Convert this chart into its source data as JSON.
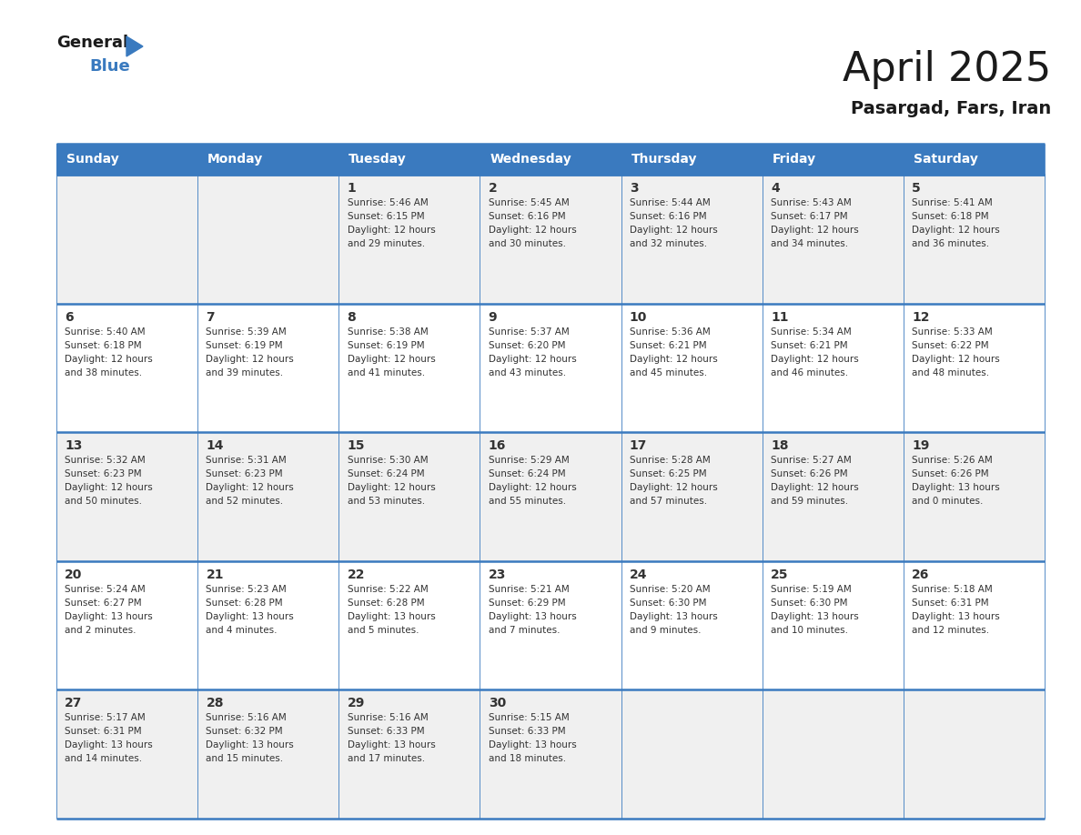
{
  "title": "April 2025",
  "subtitle": "Pasargad, Fars, Iran",
  "header_color": "#3a7abf",
  "header_text_color": "#ffffff",
  "cell_bg_color": "#f0f0f0",
  "cell_bg_color_alt": "#ffffff",
  "text_color": "#333333",
  "border_color": "#3a7abf",
  "days_of_week": [
    "Sunday",
    "Monday",
    "Tuesday",
    "Wednesday",
    "Thursday",
    "Friday",
    "Saturday"
  ],
  "weeks": [
    [
      {
        "day": null,
        "info": null
      },
      {
        "day": null,
        "info": null
      },
      {
        "day": 1,
        "info": {
          "sunrise": "5:46 AM",
          "sunset": "6:15 PM",
          "daylight_line1": "Daylight: 12 hours",
          "daylight_line2": "and 29 minutes."
        }
      },
      {
        "day": 2,
        "info": {
          "sunrise": "5:45 AM",
          "sunset": "6:16 PM",
          "daylight_line1": "Daylight: 12 hours",
          "daylight_line2": "and 30 minutes."
        }
      },
      {
        "day": 3,
        "info": {
          "sunrise": "5:44 AM",
          "sunset": "6:16 PM",
          "daylight_line1": "Daylight: 12 hours",
          "daylight_line2": "and 32 minutes."
        }
      },
      {
        "day": 4,
        "info": {
          "sunrise": "5:43 AM",
          "sunset": "6:17 PM",
          "daylight_line1": "Daylight: 12 hours",
          "daylight_line2": "and 34 minutes."
        }
      },
      {
        "day": 5,
        "info": {
          "sunrise": "5:41 AM",
          "sunset": "6:18 PM",
          "daylight_line1": "Daylight: 12 hours",
          "daylight_line2": "and 36 minutes."
        }
      }
    ],
    [
      {
        "day": 6,
        "info": {
          "sunrise": "5:40 AM",
          "sunset": "6:18 PM",
          "daylight_line1": "Daylight: 12 hours",
          "daylight_line2": "and 38 minutes."
        }
      },
      {
        "day": 7,
        "info": {
          "sunrise": "5:39 AM",
          "sunset": "6:19 PM",
          "daylight_line1": "Daylight: 12 hours",
          "daylight_line2": "and 39 minutes."
        }
      },
      {
        "day": 8,
        "info": {
          "sunrise": "5:38 AM",
          "sunset": "6:19 PM",
          "daylight_line1": "Daylight: 12 hours",
          "daylight_line2": "and 41 minutes."
        }
      },
      {
        "day": 9,
        "info": {
          "sunrise": "5:37 AM",
          "sunset": "6:20 PM",
          "daylight_line1": "Daylight: 12 hours",
          "daylight_line2": "and 43 minutes."
        }
      },
      {
        "day": 10,
        "info": {
          "sunrise": "5:36 AM",
          "sunset": "6:21 PM",
          "daylight_line1": "Daylight: 12 hours",
          "daylight_line2": "and 45 minutes."
        }
      },
      {
        "day": 11,
        "info": {
          "sunrise": "5:34 AM",
          "sunset": "6:21 PM",
          "daylight_line1": "Daylight: 12 hours",
          "daylight_line2": "and 46 minutes."
        }
      },
      {
        "day": 12,
        "info": {
          "sunrise": "5:33 AM",
          "sunset": "6:22 PM",
          "daylight_line1": "Daylight: 12 hours",
          "daylight_line2": "and 48 minutes."
        }
      }
    ],
    [
      {
        "day": 13,
        "info": {
          "sunrise": "5:32 AM",
          "sunset": "6:23 PM",
          "daylight_line1": "Daylight: 12 hours",
          "daylight_line2": "and 50 minutes."
        }
      },
      {
        "day": 14,
        "info": {
          "sunrise": "5:31 AM",
          "sunset": "6:23 PM",
          "daylight_line1": "Daylight: 12 hours",
          "daylight_line2": "and 52 minutes."
        }
      },
      {
        "day": 15,
        "info": {
          "sunrise": "5:30 AM",
          "sunset": "6:24 PM",
          "daylight_line1": "Daylight: 12 hours",
          "daylight_line2": "and 53 minutes."
        }
      },
      {
        "day": 16,
        "info": {
          "sunrise": "5:29 AM",
          "sunset": "6:24 PM",
          "daylight_line1": "Daylight: 12 hours",
          "daylight_line2": "and 55 minutes."
        }
      },
      {
        "day": 17,
        "info": {
          "sunrise": "5:28 AM",
          "sunset": "6:25 PM",
          "daylight_line1": "Daylight: 12 hours",
          "daylight_line2": "and 57 minutes."
        }
      },
      {
        "day": 18,
        "info": {
          "sunrise": "5:27 AM",
          "sunset": "6:26 PM",
          "daylight_line1": "Daylight: 12 hours",
          "daylight_line2": "and 59 minutes."
        }
      },
      {
        "day": 19,
        "info": {
          "sunrise": "5:26 AM",
          "sunset": "6:26 PM",
          "daylight_line1": "Daylight: 13 hours",
          "daylight_line2": "and 0 minutes."
        }
      }
    ],
    [
      {
        "day": 20,
        "info": {
          "sunrise": "5:24 AM",
          "sunset": "6:27 PM",
          "daylight_line1": "Daylight: 13 hours",
          "daylight_line2": "and 2 minutes."
        }
      },
      {
        "day": 21,
        "info": {
          "sunrise": "5:23 AM",
          "sunset": "6:28 PM",
          "daylight_line1": "Daylight: 13 hours",
          "daylight_line2": "and 4 minutes."
        }
      },
      {
        "day": 22,
        "info": {
          "sunrise": "5:22 AM",
          "sunset": "6:28 PM",
          "daylight_line1": "Daylight: 13 hours",
          "daylight_line2": "and 5 minutes."
        }
      },
      {
        "day": 23,
        "info": {
          "sunrise": "5:21 AM",
          "sunset": "6:29 PM",
          "daylight_line1": "Daylight: 13 hours",
          "daylight_line2": "and 7 minutes."
        }
      },
      {
        "day": 24,
        "info": {
          "sunrise": "5:20 AM",
          "sunset": "6:30 PM",
          "daylight_line1": "Daylight: 13 hours",
          "daylight_line2": "and 9 minutes."
        }
      },
      {
        "day": 25,
        "info": {
          "sunrise": "5:19 AM",
          "sunset": "6:30 PM",
          "daylight_line1": "Daylight: 13 hours",
          "daylight_line2": "and 10 minutes."
        }
      },
      {
        "day": 26,
        "info": {
          "sunrise": "5:18 AM",
          "sunset": "6:31 PM",
          "daylight_line1": "Daylight: 13 hours",
          "daylight_line2": "and 12 minutes."
        }
      }
    ],
    [
      {
        "day": 27,
        "info": {
          "sunrise": "5:17 AM",
          "sunset": "6:31 PM",
          "daylight_line1": "Daylight: 13 hours",
          "daylight_line2": "and 14 minutes."
        }
      },
      {
        "day": 28,
        "info": {
          "sunrise": "5:16 AM",
          "sunset": "6:32 PM",
          "daylight_line1": "Daylight: 13 hours",
          "daylight_line2": "and 15 minutes."
        }
      },
      {
        "day": 29,
        "info": {
          "sunrise": "5:16 AM",
          "sunset": "6:33 PM",
          "daylight_line1": "Daylight: 13 hours",
          "daylight_line2": "and 17 minutes."
        }
      },
      {
        "day": 30,
        "info": {
          "sunrise": "5:15 AM",
          "sunset": "6:33 PM",
          "daylight_line1": "Daylight: 13 hours",
          "daylight_line2": "and 18 minutes."
        }
      },
      {
        "day": null,
        "info": null
      },
      {
        "day": null,
        "info": null
      },
      {
        "day": null,
        "info": null
      }
    ]
  ],
  "logo_text_general": "General",
  "logo_text_blue": "Blue",
  "logo_triangle_color": "#3a7abf",
  "title_fontsize": 32,
  "subtitle_fontsize": 14,
  "day_number_fontsize": 10,
  "cell_text_fontsize": 7.5,
  "header_fontsize": 10
}
